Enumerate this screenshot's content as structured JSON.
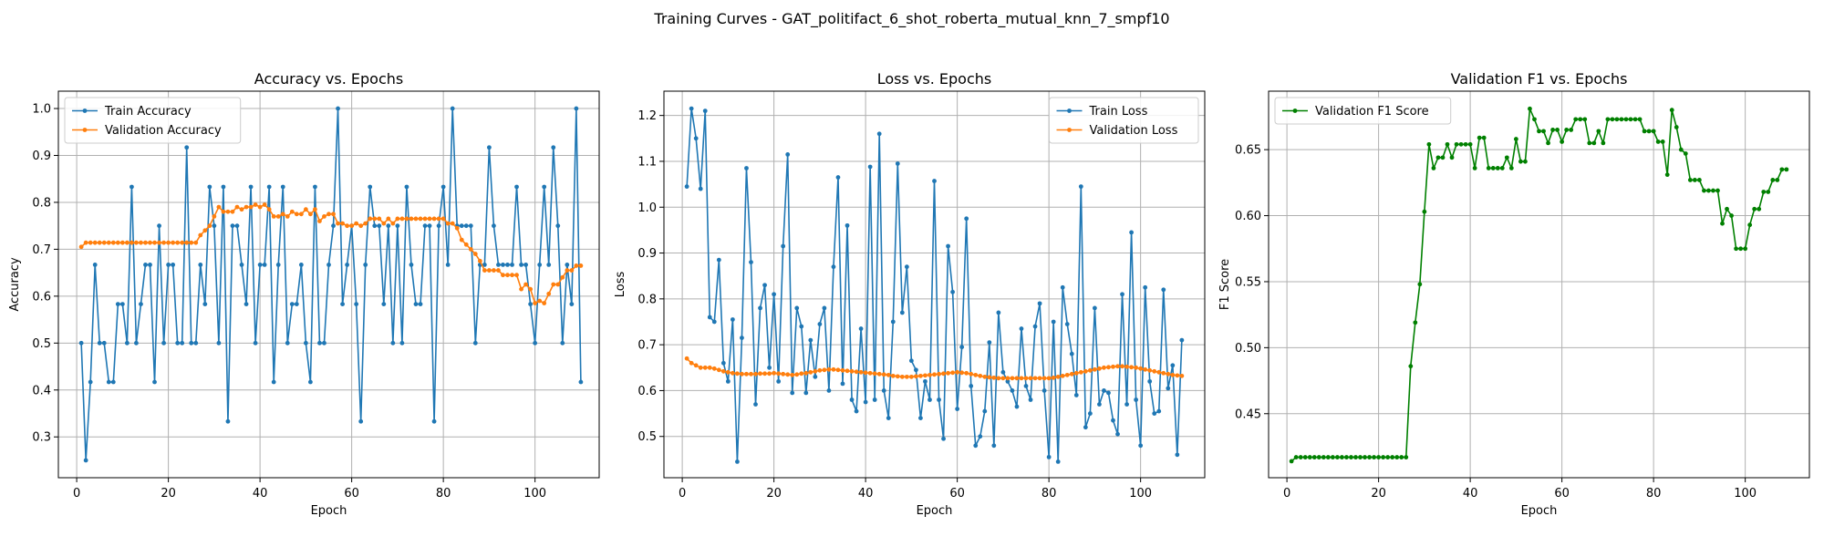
{
  "suptitle": "Training Curves - GAT_politifact_6_shot_roberta_mutual_knn_7_smpf10",
  "colors": {
    "blue": "#1f77b4",
    "orange": "#ff7f0e",
    "green": "#008000"
  },
  "chart_data": [
    {
      "type": "line",
      "title": "Accuracy vs. Epochs",
      "xlabel": "Epoch",
      "ylabel": "Accuracy",
      "xlim": [
        -4,
        114
      ],
      "ylim": [
        0.213,
        1.037
      ],
      "xticks": [
        0,
        20,
        40,
        60,
        80,
        100
      ],
      "yticks": [
        0.3,
        0.4,
        0.5,
        0.6,
        0.7,
        0.8,
        0.9,
        1.0
      ],
      "ytick_labels": [
        "0.3",
        "0.4",
        "0.5",
        "0.6",
        "0.7",
        "0.8",
        "0.9",
        "1.0"
      ],
      "grid": true,
      "legend": "upper left",
      "series": [
        {
          "name": "Train Accuracy",
          "color": "#1f77b4",
          "x_start": 1,
          "values": [
            0.5,
            0.25,
            0.417,
            0.667,
            0.5,
            0.5,
            0.417,
            0.417,
            0.583,
            0.583,
            0.5,
            0.833,
            0.5,
            0.583,
            0.667,
            0.667,
            0.417,
            0.75,
            0.5,
            0.667,
            0.667,
            0.5,
            0.5,
            0.917,
            0.5,
            0.5,
            0.667,
            0.583,
            0.833,
            0.75,
            0.5,
            0.833,
            0.333,
            0.75,
            0.75,
            0.667,
            0.583,
            0.833,
            0.5,
            0.667,
            0.667,
            0.833,
            0.417,
            0.667,
            0.833,
            0.5,
            0.583,
            0.583,
            0.667,
            0.5,
            0.417,
            0.833,
            0.5,
            0.5,
            0.667,
            0.75,
            1.0,
            0.583,
            0.667,
            0.75,
            0.583,
            0.333,
            0.667,
            0.833,
            0.75,
            0.75,
            0.583,
            0.75,
            0.5,
            0.75,
            0.5,
            0.833,
            0.667,
            0.583,
            0.583,
            0.75,
            0.75,
            0.333,
            0.75,
            0.833,
            0.667,
            1.0,
            0.75,
            0.75,
            0.75,
            0.75,
            0.5,
            0.667,
            0.667,
            0.917,
            0.75,
            0.667,
            0.667,
            0.667,
            0.667,
            0.833,
            0.667,
            0.667,
            0.583,
            0.5,
            0.667,
            0.833,
            0.667,
            0.917,
            0.75,
            0.5,
            0.667,
            0.583,
            1.0,
            0.417
          ]
        },
        {
          "name": "Validation Accuracy",
          "color": "#ff7f0e",
          "x_start": 1,
          "values": [
            0.705,
            0.714,
            0.714,
            0.714,
            0.714,
            0.714,
            0.714,
            0.714,
            0.714,
            0.714,
            0.714,
            0.714,
            0.714,
            0.714,
            0.714,
            0.714,
            0.714,
            0.714,
            0.714,
            0.714,
            0.714,
            0.714,
            0.714,
            0.714,
            0.714,
            0.714,
            0.73,
            0.74,
            0.75,
            0.77,
            0.79,
            0.78,
            0.78,
            0.78,
            0.79,
            0.785,
            0.79,
            0.79,
            0.795,
            0.79,
            0.795,
            0.785,
            0.77,
            0.77,
            0.775,
            0.77,
            0.78,
            0.775,
            0.775,
            0.785,
            0.775,
            0.785,
            0.76,
            0.77,
            0.775,
            0.775,
            0.755,
            0.755,
            0.75,
            0.75,
            0.755,
            0.75,
            0.755,
            0.765,
            0.765,
            0.765,
            0.755,
            0.765,
            0.755,
            0.765,
            0.765,
            0.765,
            0.765,
            0.765,
            0.765,
            0.765,
            0.765,
            0.765,
            0.765,
            0.765,
            0.755,
            0.755,
            0.745,
            0.72,
            0.71,
            0.7,
            0.69,
            0.675,
            0.655,
            0.655,
            0.655,
            0.655,
            0.645,
            0.645,
            0.645,
            0.645,
            0.615,
            0.625,
            0.615,
            0.585,
            0.59,
            0.585,
            0.605,
            0.625,
            0.625,
            0.64,
            0.655,
            0.655,
            0.665,
            0.665
          ]
        }
      ]
    },
    {
      "type": "line",
      "title": "Loss vs. Epochs",
      "xlabel": "Epoch",
      "ylabel": "Loss",
      "xlim": [
        -4,
        114
      ],
      "ylim": [
        0.41,
        1.253
      ],
      "xticks": [
        0,
        20,
        40,
        60,
        80,
        100
      ],
      "yticks": [
        0.5,
        0.6,
        0.7,
        0.8,
        0.9,
        1.0,
        1.1,
        1.2
      ],
      "ytick_labels": [
        "0.5",
        "0.6",
        "0.7",
        "0.8",
        "0.9",
        "1.0",
        "1.1",
        "1.2"
      ],
      "grid": true,
      "legend": "upper right",
      "series": [
        {
          "name": "Train Loss",
          "color": "#1f77b4",
          "x_start": 1,
          "values": [
            1.045,
            1.215,
            1.15,
            1.04,
            1.21,
            0.76,
            0.75,
            0.885,
            0.66,
            0.62,
            0.755,
            0.445,
            0.715,
            1.085,
            0.88,
            0.57,
            0.78,
            0.83,
            0.65,
            0.81,
            0.62,
            0.915,
            1.115,
            0.595,
            0.78,
            0.74,
            0.595,
            0.71,
            0.63,
            0.745,
            0.78,
            0.6,
            0.87,
            1.065,
            0.615,
            0.96,
            0.58,
            0.555,
            0.735,
            0.575,
            1.088,
            0.58,
            1.16,
            0.6,
            0.54,
            0.75,
            1.095,
            0.77,
            0.87,
            0.665,
            0.645,
            0.54,
            0.62,
            0.58,
            1.057,
            0.58,
            0.495,
            0.915,
            0.815,
            0.56,
            0.695,
            0.975,
            0.61,
            0.48,
            0.5,
            0.555,
            0.705,
            0.48,
            0.77,
            0.64,
            0.62,
            0.6,
            0.565,
            0.735,
            0.61,
            0.58,
            0.74,
            0.79,
            0.6,
            0.455,
            0.75,
            0.445,
            0.825,
            0.745,
            0.68,
            0.59,
            1.045,
            0.52,
            0.55,
            0.78,
            0.57,
            0.6,
            0.595,
            0.535,
            0.505,
            0.81,
            0.57,
            0.945,
            0.58,
            0.48,
            0.825,
            0.62,
            0.55,
            0.555,
            0.82,
            0.605,
            0.655,
            0.46,
            0.71
          ]
        },
        {
          "name": "Validation Loss",
          "color": "#ff7f0e",
          "x_start": 1,
          "values": [
            0.67,
            0.66,
            0.655,
            0.65,
            0.65,
            0.65,
            0.648,
            0.645,
            0.642,
            0.64,
            0.638,
            0.637,
            0.636,
            0.636,
            0.636,
            0.636,
            0.637,
            0.637,
            0.637,
            0.638,
            0.637,
            0.636,
            0.635,
            0.634,
            0.635,
            0.637,
            0.638,
            0.64,
            0.642,
            0.644,
            0.645,
            0.646,
            0.646,
            0.645,
            0.644,
            0.643,
            0.642,
            0.641,
            0.64,
            0.639,
            0.638,
            0.637,
            0.636,
            0.635,
            0.634,
            0.632,
            0.631,
            0.63,
            0.63,
            0.63,
            0.631,
            0.632,
            0.633,
            0.634,
            0.635,
            0.636,
            0.637,
            0.638,
            0.639,
            0.64,
            0.639,
            0.638,
            0.636,
            0.634,
            0.632,
            0.63,
            0.629,
            0.628,
            0.627,
            0.627,
            0.627,
            0.627,
            0.627,
            0.627,
            0.627,
            0.627,
            0.627,
            0.627,
            0.627,
            0.627,
            0.628,
            0.63,
            0.632,
            0.634,
            0.636,
            0.638,
            0.64,
            0.642,
            0.644,
            0.646,
            0.648,
            0.65,
            0.651,
            0.652,
            0.653,
            0.653,
            0.652,
            0.651,
            0.65,
            0.648,
            0.646,
            0.644,
            0.642,
            0.64,
            0.638,
            0.636,
            0.634,
            0.633,
            0.632
          ]
        }
      ]
    },
    {
      "type": "line",
      "title": "Validation F1 vs. Epochs",
      "xlabel": "Epoch",
      "ylabel": "F1 Score",
      "xlim": [
        -4,
        114
      ],
      "ylim": [
        0.4015,
        0.6943
      ],
      "xticks": [
        0,
        20,
        40,
        60,
        80,
        100
      ],
      "yticks": [
        0.45,
        0.5,
        0.55,
        0.6,
        0.65
      ],
      "ytick_labels": [
        "0.45",
        "0.50",
        "0.55",
        "0.60",
        "0.65"
      ],
      "grid": true,
      "legend": "upper left",
      "series": [
        {
          "name": "Validation F1 Score",
          "color": "#008000",
          "x_start": 1,
          "values": [
            0.414,
            0.417,
            0.417,
            0.417,
            0.417,
            0.417,
            0.417,
            0.417,
            0.417,
            0.417,
            0.417,
            0.417,
            0.417,
            0.417,
            0.417,
            0.417,
            0.417,
            0.417,
            0.417,
            0.417,
            0.417,
            0.417,
            0.417,
            0.417,
            0.417,
            0.417,
            0.486,
            0.519,
            0.548,
            0.603,
            0.654,
            0.636,
            0.644,
            0.644,
            0.654,
            0.644,
            0.654,
            0.654,
            0.654,
            0.654,
            0.636,
            0.659,
            0.659,
            0.636,
            0.636,
            0.636,
            0.636,
            0.644,
            0.636,
            0.658,
            0.641,
            0.641,
            0.681,
            0.673,
            0.664,
            0.664,
            0.655,
            0.665,
            0.665,
            0.656,
            0.665,
            0.665,
            0.673,
            0.673,
            0.673,
            0.655,
            0.655,
            0.664,
            0.655,
            0.673,
            0.673,
            0.673,
            0.673,
            0.673,
            0.673,
            0.673,
            0.673,
            0.664,
            0.664,
            0.664,
            0.656,
            0.656,
            0.631,
            0.68,
            0.667,
            0.65,
            0.647,
            0.627,
            0.627,
            0.627,
            0.619,
            0.619,
            0.619,
            0.619,
            0.594,
            0.605,
            0.6,
            0.575,
            0.575,
            0.575,
            0.593,
            0.605,
            0.605,
            0.618,
            0.618,
            0.627,
            0.627,
            0.635,
            0.635
          ]
        }
      ]
    }
  ]
}
